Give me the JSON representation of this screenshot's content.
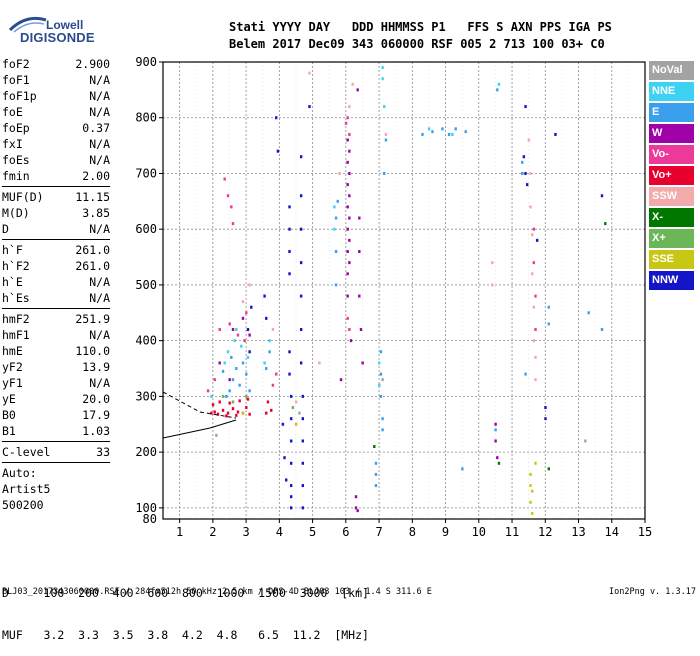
{
  "logo": {
    "brand": "Lowell",
    "product": "DIGISONDE"
  },
  "header": {
    "labels": "Stati YYYY DAY   DDD HHMMSS P1   FFS S AXN PPS IGA PS",
    "values": "Belem 2017 Dec09 343 060000 RSF 005 2 713 100 03+ C0"
  },
  "parameters": [
    {
      "label": "foF2",
      "value": "2.900"
    },
    {
      "label": "foF1",
      "value": "N/A"
    },
    {
      "label": "foF1p",
      "value": "N/A"
    },
    {
      "label": "foE",
      "value": "N/A"
    },
    {
      "label": "foEp",
      "value": "0.37"
    },
    {
      "label": "fxI",
      "value": "N/A"
    },
    {
      "label": "foEs",
      "value": "N/A"
    },
    {
      "label": "fmin",
      "value": "2.00"
    },
    {
      "sep": true
    },
    {
      "label": "MUF(D)",
      "value": "11.15"
    },
    {
      "label": "M(D)",
      "value": "3.85"
    },
    {
      "label": "D",
      "value": "N/A"
    },
    {
      "sep": true
    },
    {
      "label": "h`F",
      "value": "261.0"
    },
    {
      "label": "h`F2",
      "value": "261.0"
    },
    {
      "label": "h`E",
      "value": "N/A"
    },
    {
      "label": "h`Es",
      "value": "N/A"
    },
    {
      "sep": true
    },
    {
      "label": "hmF2",
      "value": "251.9"
    },
    {
      "label": "hmF1",
      "value": "N/A"
    },
    {
      "label": "hmE",
      "value": "110.0"
    },
    {
      "label": "yF2",
      "value": "13.9"
    },
    {
      "label": "yF1",
      "value": "N/A"
    },
    {
      "label": "yE",
      "value": "20.0"
    },
    {
      "label": "B0",
      "value": "17.9"
    },
    {
      "label": "B1",
      "value": "1.03"
    },
    {
      "sep": true
    },
    {
      "label": "C-level",
      "value": "33"
    },
    {
      "sep": true
    },
    {
      "free": "Auto:"
    },
    {
      "free": "Artist5"
    },
    {
      "free": "500200"
    }
  ],
  "legend": [
    {
      "label": "NoVal",
      "color": "#a3a3a3"
    },
    {
      "label": "NNE",
      "color": "#3ed2f2"
    },
    {
      "label": "E",
      "color": "#3aa0ee"
    },
    {
      "label": "W",
      "color": "#a000a8"
    },
    {
      "label": "Vo-",
      "color": "#ec3a9a"
    },
    {
      "label": "Vo+",
      "color": "#e8002e"
    },
    {
      "label": "SSW",
      "color": "#f2aaaa"
    },
    {
      "label": "X-",
      "color": "#007800"
    },
    {
      "label": "X+",
      "color": "#6cb65a"
    },
    {
      "label": "SSE",
      "color": "#c8c814"
    },
    {
      "label": "NNW",
      "color": "#1414c8"
    }
  ],
  "chart_data": {
    "type": "scatter",
    "xlim": [
      0.5,
      15
    ],
    "ylim": [
      80,
      900
    ],
    "x_ticks": [
      "1",
      "2",
      "3",
      "4",
      "5",
      "6",
      "7",
      "8",
      "9",
      "10",
      "11",
      "12",
      "13",
      "14",
      "15"
    ],
    "y_ticks": [
      "100",
      "200",
      "300",
      "400",
      "500",
      "600",
      "700",
      "800",
      "900"
    ],
    "y_tick_values": [
      100,
      200,
      300,
      400,
      500,
      600,
      700,
      800,
      900
    ],
    "y_bottom_label": "80",
    "grid": true,
    "series": [
      {
        "color": "#e8002e",
        "points": [
          [
            1.95,
            270
          ],
          [
            2.05,
            272
          ],
          [
            2.15,
            268
          ],
          [
            2.3,
            275
          ],
          [
            2.45,
            270
          ],
          [
            2.6,
            278
          ],
          [
            2.75,
            272
          ],
          [
            2.9,
            270
          ],
          [
            3.0,
            280
          ],
          [
            3.1,
            268
          ],
          [
            3.6,
            270
          ],
          [
            3.75,
            275
          ],
          [
            2.0,
            285
          ],
          [
            2.2,
            290
          ],
          [
            2.5,
            288
          ],
          [
            2.8,
            292
          ],
          [
            3.05,
            295
          ],
          [
            3.65,
            290
          ],
          [
            2.4,
            265
          ],
          [
            2.7,
            266
          ]
        ]
      },
      {
        "color": "#3aa0ee",
        "points": [
          [
            2.5,
            310
          ],
          [
            2.6,
            330
          ],
          [
            2.7,
            350
          ],
          [
            2.8,
            320
          ],
          [
            2.9,
            360
          ],
          [
            3.0,
            340
          ],
          [
            3.6,
            350
          ],
          [
            3.7,
            380
          ],
          [
            2.4,
            300
          ],
          [
            2.55,
            370
          ],
          [
            3.1,
            310
          ],
          [
            2.3,
            345
          ],
          [
            5.7,
            500
          ],
          [
            5.7,
            560
          ],
          [
            5.7,
            620
          ],
          [
            5.75,
            650
          ],
          [
            7.05,
            300
          ],
          [
            7.05,
            340
          ],
          [
            7.05,
            380
          ],
          [
            7.1,
            240
          ],
          [
            7.1,
            260
          ],
          [
            7.15,
            700
          ],
          [
            7.2,
            760
          ],
          [
            8.3,
            770
          ],
          [
            8.6,
            775
          ],
          [
            8.9,
            780
          ],
          [
            9.1,
            770
          ],
          [
            9.3,
            780
          ],
          [
            9.6,
            775
          ],
          [
            10.55,
            850
          ],
          [
            6.9,
            160
          ],
          [
            6.9,
            180
          ],
          [
            6.9,
            140
          ],
          [
            11.3,
            720
          ],
          [
            11.3,
            700
          ],
          [
            12.1,
            460
          ],
          [
            12.1,
            430
          ],
          [
            13.3,
            450
          ],
          [
            13.7,
            420
          ],
          [
            9.5,
            170
          ],
          [
            10.5,
            240
          ],
          [
            11.4,
            340
          ]
        ]
      },
      {
        "color": "#3ed2f2",
        "points": [
          [
            2.45,
            380
          ],
          [
            2.65,
            400
          ],
          [
            2.85,
            390
          ],
          [
            3.05,
            370
          ],
          [
            3.7,
            400
          ],
          [
            3.55,
            360
          ],
          [
            5.65,
            600
          ],
          [
            5.65,
            640
          ],
          [
            7.1,
            870
          ],
          [
            7.1,
            890
          ],
          [
            7.15,
            820
          ],
          [
            8.5,
            780
          ],
          [
            9.2,
            770
          ],
          [
            10.6,
            860
          ],
          [
            7.0,
            360
          ],
          [
            7.0,
            320
          ],
          [
            2.35,
            360
          ],
          [
            2.7,
            420
          ],
          [
            1.95,
            300
          ]
        ]
      },
      {
        "color": "#a000a8",
        "points": [
          [
            6.05,
            760
          ],
          [
            6.05,
            720
          ],
          [
            6.05,
            680
          ],
          [
            6.05,
            640
          ],
          [
            6.05,
            600
          ],
          [
            6.05,
            560
          ],
          [
            6.05,
            520
          ],
          [
            6.05,
            480
          ],
          [
            6.1,
            740
          ],
          [
            6.1,
            700
          ],
          [
            6.1,
            660
          ],
          [
            6.1,
            620
          ],
          [
            6.1,
            580
          ],
          [
            6.1,
            540
          ],
          [
            6.4,
            560
          ],
          [
            6.4,
            620
          ],
          [
            6.4,
            480
          ],
          [
            6.45,
            420
          ],
          [
            6.5,
            360
          ],
          [
            6.35,
            850
          ],
          [
            6.3,
            120
          ],
          [
            6.3,
            100
          ],
          [
            6.35,
            95
          ],
          [
            2.6,
            420
          ],
          [
            2.9,
            440
          ],
          [
            3.1,
            410
          ],
          [
            2.2,
            360
          ],
          [
            2.5,
            330
          ],
          [
            10.5,
            220
          ],
          [
            10.5,
            250
          ],
          [
            10.55,
            190
          ],
          [
            5.85,
            330
          ],
          [
            6.15,
            400
          ]
        ]
      },
      {
        "color": "#ec3a9a",
        "points": [
          [
            2.2,
            420
          ],
          [
            2.5,
            430
          ],
          [
            2.75,
            410
          ],
          [
            2.95,
            400
          ],
          [
            3.0,
            450
          ],
          [
            2.35,
            690
          ],
          [
            2.45,
            660
          ],
          [
            2.55,
            640
          ],
          [
            2.6,
            610
          ],
          [
            6.05,
            800
          ],
          [
            6.0,
            790
          ],
          [
            6.1,
            770
          ],
          [
            6.05,
            440
          ],
          [
            6.1,
            420
          ],
          [
            11.65,
            540
          ],
          [
            11.7,
            480
          ],
          [
            11.7,
            420
          ],
          [
            11.65,
            600
          ],
          [
            3.8,
            320
          ],
          [
            3.9,
            340
          ],
          [
            2.05,
            330
          ],
          [
            1.85,
            310
          ]
        ]
      },
      {
        "color": "#f2aaaa",
        "points": [
          [
            6.2,
            860
          ],
          [
            6.1,
            820
          ],
          [
            7.2,
            770
          ],
          [
            11.5,
            760
          ],
          [
            11.55,
            700
          ],
          [
            11.55,
            640
          ],
          [
            11.6,
            590
          ],
          [
            11.6,
            520
          ],
          [
            11.65,
            460
          ],
          [
            11.65,
            400
          ],
          [
            11.7,
            370
          ],
          [
            11.7,
            330
          ],
          [
            10.4,
            540
          ],
          [
            10.4,
            500
          ],
          [
            4.9,
            880
          ],
          [
            4.5,
            290
          ],
          [
            3.8,
            420
          ],
          [
            2.9,
            470
          ],
          [
            3.1,
            500
          ],
          [
            5.2,
            360
          ],
          [
            5.8,
            700
          ]
        ]
      },
      {
        "color": "#1414c8",
        "points": [
          [
            4.3,
            520
          ],
          [
            4.3,
            560
          ],
          [
            4.3,
            600
          ],
          [
            4.3,
            640
          ],
          [
            4.3,
            380
          ],
          [
            4.3,
            340
          ],
          [
            4.35,
            300
          ],
          [
            4.35,
            260
          ],
          [
            4.35,
            220
          ],
          [
            4.35,
            180
          ],
          [
            4.35,
            140
          ],
          [
            4.35,
            120
          ],
          [
            4.35,
            100
          ],
          [
            4.65,
            730
          ],
          [
            4.65,
            660
          ],
          [
            4.65,
            600
          ],
          [
            4.65,
            540
          ],
          [
            4.65,
            480
          ],
          [
            4.65,
            420
          ],
          [
            4.65,
            360
          ],
          [
            4.7,
            300
          ],
          [
            4.7,
            260
          ],
          [
            4.7,
            220
          ],
          [
            4.7,
            180
          ],
          [
            4.7,
            140
          ],
          [
            4.7,
            100
          ],
          [
            3.05,
            420
          ],
          [
            3.1,
            380
          ],
          [
            3.15,
            460
          ],
          [
            3.55,
            480
          ],
          [
            3.6,
            440
          ],
          [
            4.1,
            250
          ],
          [
            4.15,
            190
          ],
          [
            4.2,
            150
          ],
          [
            4.9,
            820
          ],
          [
            11.35,
            730
          ],
          [
            11.4,
            700
          ],
          [
            11.45,
            680
          ],
          [
            11.4,
            820
          ],
          [
            11.75,
            580
          ],
          [
            12.3,
            770
          ],
          [
            13.7,
            660
          ],
          [
            12.0,
            280
          ],
          [
            12.0,
            260
          ],
          [
            3.95,
            740
          ],
          [
            3.9,
            800
          ]
        ]
      },
      {
        "color": "#007800",
        "points": [
          [
            12.1,
            170
          ],
          [
            13.8,
            610
          ],
          [
            10.6,
            180
          ],
          [
            6.85,
            210
          ]
        ]
      },
      {
        "color": "#6cb65a",
        "points": [
          [
            2.6,
            290
          ],
          [
            3.0,
            300
          ],
          [
            2.3,
            300
          ],
          [
            4.4,
            280
          ]
        ]
      },
      {
        "color": "#c8c814",
        "points": [
          [
            11.55,
            160
          ],
          [
            11.55,
            140
          ],
          [
            11.55,
            110
          ],
          [
            11.6,
            90
          ],
          [
            11.6,
            130
          ],
          [
            11.7,
            180
          ],
          [
            4.5,
            250
          ],
          [
            2.9,
            270
          ]
        ]
      },
      {
        "color": "#a3a3a3",
        "points": [
          [
            4.6,
            270
          ],
          [
            7.1,
            330
          ],
          [
            13.2,
            220
          ],
          [
            2.1,
            230
          ]
        ]
      }
    ]
  },
  "footer": {
    "d_row": "D     100  200  400  600  800  1000  1500  3000  [km]",
    "muf_row": "MUF   3.2  3.3  3.5  3.8  4.2  4.8   6.5  11.2  [MHz]",
    "source": "BLJ03_2017343060000.RSF / 284fx512h 50 kHz 2.5 km / DPS-4D BLJ03 103 / 1.4 S 311.6 E",
    "version": "Ion2Png v. 1.3.17"
  }
}
